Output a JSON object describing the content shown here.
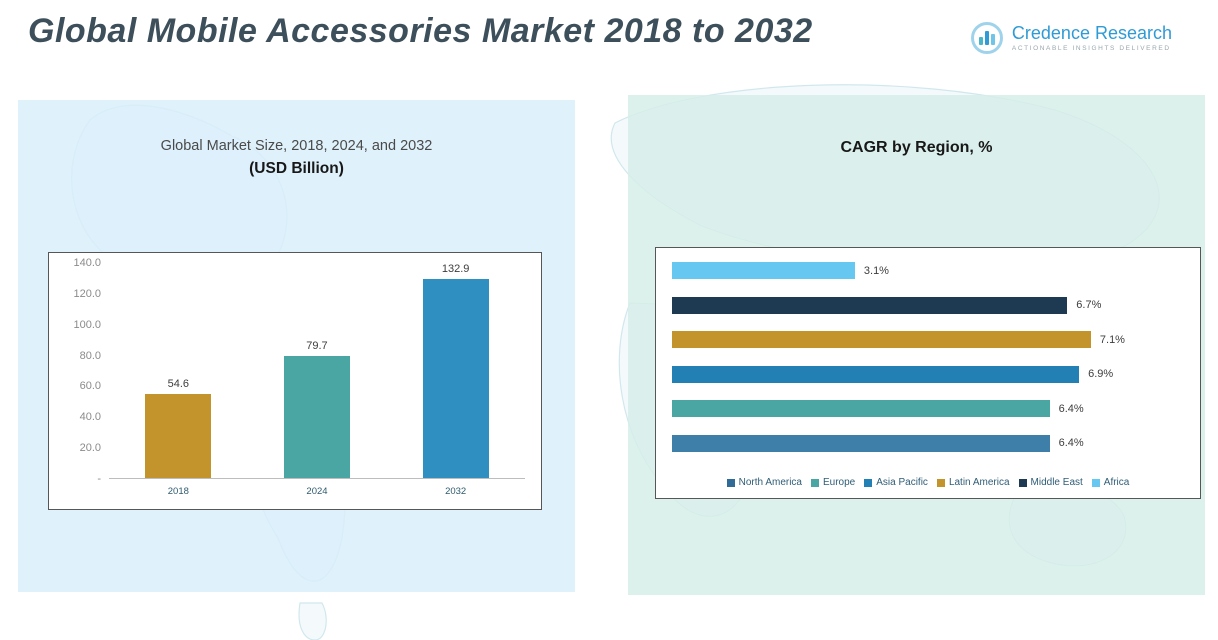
{
  "header": {
    "title": "Global Mobile Accessories Market 2018 to 2032",
    "logo_name": "Credence Research",
    "logo_tagline": "Actionable Insights Delivered"
  },
  "colors": {
    "accent_blue": "#2e9bd6",
    "panel_left_bg": "#d8eefa",
    "panel_right_bg": "#d6eee8",
    "title_text": "#3c4f5a"
  },
  "chart_data": [
    {
      "type": "bar",
      "title": "Global Market Size, 2018, 2024, and 2032",
      "subtitle": "(USD Billion)",
      "categories": [
        "2018",
        "2024",
        "2032"
      ],
      "values": [
        54.6,
        79.7,
        132.9
      ],
      "value_labels": [
        "54.6",
        "79.7",
        "132.9"
      ],
      "colors": [
        "#c2942b",
        "#4aa6a3",
        "#2e8fc0"
      ],
      "ylim": [
        0,
        140
      ],
      "yticks": [
        {
          "label": "140.0",
          "value": 140
        },
        {
          "label": "120.0",
          "value": 120
        },
        {
          "label": "100.0",
          "value": 100
        },
        {
          "label": "80.0",
          "value": 80
        },
        {
          "label": "60.0",
          "value": 60
        },
        {
          "label": "40.0",
          "value": 40
        },
        {
          "label": "20.0",
          "value": 20
        },
        {
          "label": "-",
          "value": 0
        }
      ],
      "grid": false,
      "legend_position": "none"
    },
    {
      "type": "bar-horizontal",
      "title": "CAGR by Region, %",
      "xlim": [
        0,
        7.8
      ],
      "bars": [
        {
          "region": "Africa",
          "value": 3.1,
          "label": "3.1%",
          "color": "#66c7f1"
        },
        {
          "region": "Middle East",
          "value": 6.7,
          "label": "6.7%",
          "color": "#1e3a52"
        },
        {
          "region": "Latin America",
          "value": 7.1,
          "label": "7.1%",
          "color": "#c2942b"
        },
        {
          "region": "Asia Pacific",
          "value": 6.9,
          "label": "6.9%",
          "color": "#2380b5"
        },
        {
          "region": "Europe",
          "value": 6.4,
          "label": "6.4%",
          "color": "#4aa6a3"
        },
        {
          "region": "North America",
          "value": 6.4,
          "label": "6.4%",
          "color": "#3d7fa8"
        }
      ],
      "legend": [
        {
          "label": "North America",
          "color": "#2f6b96"
        },
        {
          "label": "Europe",
          "color": "#4aa6a3"
        },
        {
          "label": "Asia Pacific",
          "color": "#2380b5"
        },
        {
          "label": "Latin America",
          "color": "#c2942b"
        },
        {
          "label": "Middle East",
          "color": "#1e3a52"
        },
        {
          "label": "Africa",
          "color": "#66c7f1"
        }
      ],
      "legend_position": "bottom"
    }
  ]
}
